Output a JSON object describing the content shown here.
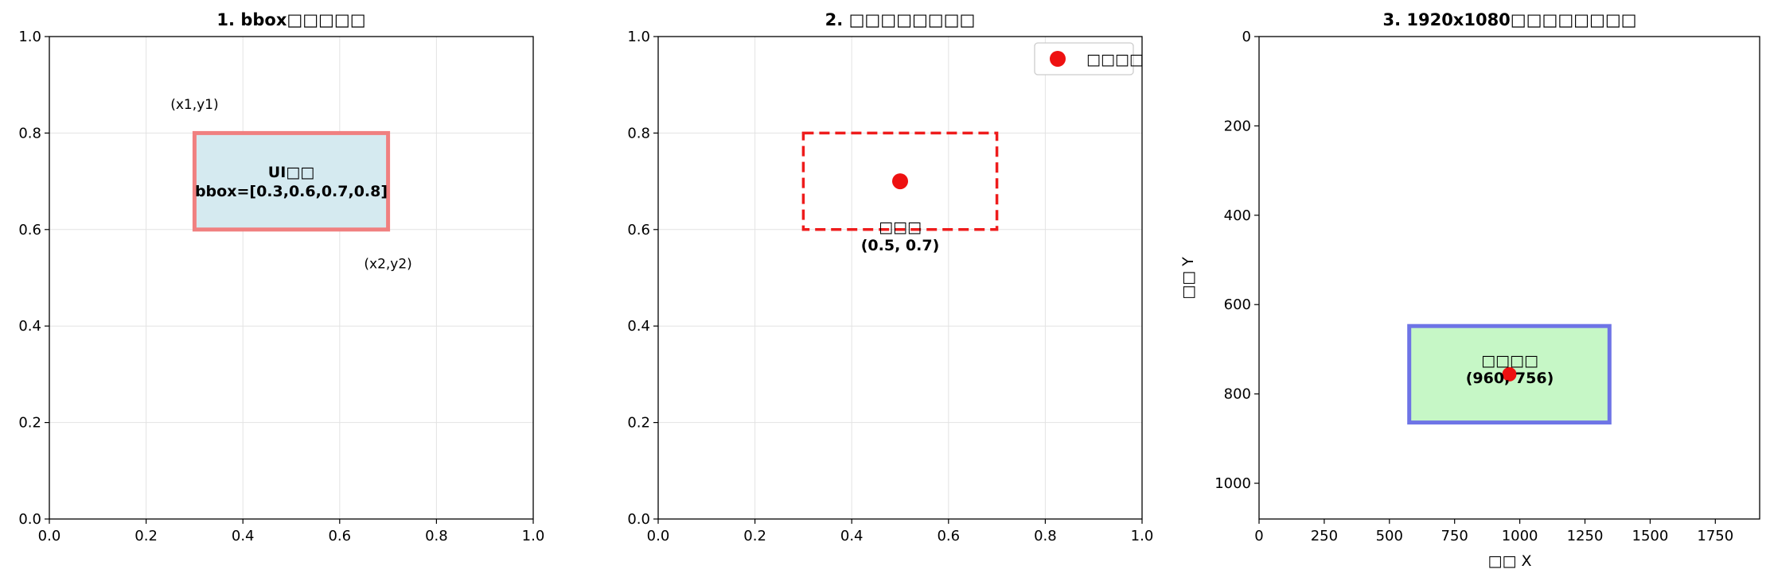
{
  "chart_data": [
    {
      "type": "scatter",
      "title": "1. bbox□□□□□",
      "xlim": [
        0,
        1
      ],
      "ylim": [
        0,
        1
      ],
      "grid": true,
      "xticks": [
        "0.0",
        "0.2",
        "0.4",
        "0.6",
        "0.8",
        "1.0"
      ],
      "yticks": [
        "0.0",
        "0.2",
        "0.4",
        "0.6",
        "0.8",
        "1.0"
      ],
      "rect": {
        "x1": 0.3,
        "y1": 0.6,
        "x2": 0.7,
        "y2": 0.8,
        "edge_color": "#f08080",
        "fill_color": "#d5eaf0"
      },
      "rect_label_1": "UI□□",
      "rect_label_2": "bbox=[0.3,0.6,0.7,0.8]",
      "annotations": [
        {
          "text": "(x1,y1)",
          "x": 0.3,
          "y": 0.86
        },
        {
          "text": "(x2,y2)",
          "x": 0.7,
          "y": 0.53
        }
      ]
    },
    {
      "type": "scatter",
      "title": "2. □□□□□□□□",
      "xlim": [
        0,
        1
      ],
      "ylim": [
        0,
        1
      ],
      "grid": true,
      "xticks": [
        "0.0",
        "0.2",
        "0.4",
        "0.6",
        "0.8",
        "1.0"
      ],
      "yticks": [
        "0.0",
        "0.2",
        "0.4",
        "0.6",
        "0.8",
        "1.0"
      ],
      "rect": {
        "x1": 0.3,
        "y1": 0.6,
        "x2": 0.7,
        "y2": 0.8,
        "edge_color": "#ee1c1c"
      },
      "point": {
        "x": 0.5,
        "y": 0.7,
        "color": "#ee1111"
      },
      "point_label_1": "□□□",
      "point_label_2": "(0.5, 0.7)",
      "legend": {
        "label": "□□□□",
        "placement": "top-right"
      }
    },
    {
      "type": "scatter",
      "title": "3. 1920x1080□□□□□□□□",
      "xlim": [
        0,
        1920
      ],
      "ylim": [
        1080,
        0
      ],
      "y_inverted": true,
      "grid": false,
      "xlabel": "□□ X",
      "ylabel": "□□ Y",
      "xticks": [
        "0",
        "250",
        "500",
        "750",
        "1000",
        "1250",
        "1500",
        "1750"
      ],
      "yticks": [
        "0",
        "200",
        "400",
        "600",
        "800",
        "1000"
      ],
      "rect": {
        "x1": 576,
        "y1": 648,
        "x2": 1344,
        "y2": 864,
        "edge_color": "#6e74e6",
        "fill_color": "#c6f7c6"
      },
      "point": {
        "x": 960,
        "y": 756,
        "color": "#ee1111"
      },
      "point_label_1": "□□□□",
      "point_label_2": "(960, 756)"
    }
  ]
}
